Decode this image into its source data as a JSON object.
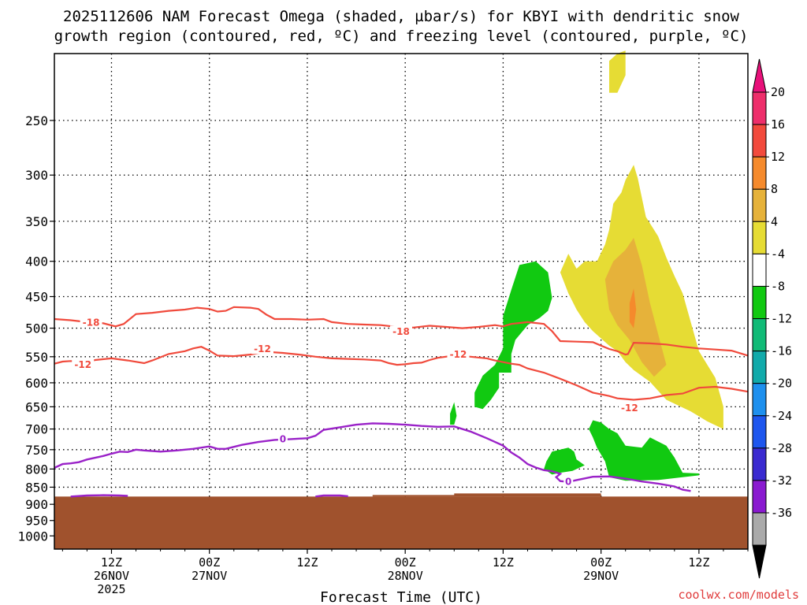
{
  "chart_data": {
    "type": "heatmap",
    "title_line1": "2025112606 NAM Forecast Omega (shaded, µbar/s) for KBYI with dendritic snow",
    "title_line2": "growth region (contoured, red, ºC) and freezing level (contoured, purple, ºC)",
    "xlabel": "Forecast Time (UTC)",
    "ylabel": "",
    "credit": "coolwx.com/models",
    "x_ticks": [
      {
        "line1": "12Z",
        "line2": "26NOV",
        "line3": "2025",
        "hour": 12
      },
      {
        "line1": "00Z",
        "line2": "27NOV",
        "line3": "",
        "hour": 24
      },
      {
        "line1": "12Z",
        "line2": "",
        "line3": "",
        "hour": 36
      },
      {
        "line1": "00Z",
        "line2": "28NOV",
        "line3": "",
        "hour": 48
      },
      {
        "line1": "12Z",
        "line2": "",
        "line3": "",
        "hour": 60
      },
      {
        "line1": "00Z",
        "line2": "29NOV",
        "line3": "",
        "hour": 72
      },
      {
        "line1": "12Z",
        "line2": "",
        "line3": "",
        "hour": 84
      }
    ],
    "xlim_hours": [
      5,
      90
    ],
    "y_scale": "log",
    "y_ticks": [
      "250",
      "300",
      "350",
      "400",
      "450",
      "500",
      "550",
      "600",
      "650",
      "700",
      "750",
      "800",
      "850",
      "900",
      "950",
      "1000"
    ],
    "ylim_mb": [
      1045,
      200
    ],
    "grid": true,
    "ground_level_mb": 877,
    "colorbar": {
      "labels": [
        "20",
        "16",
        "12",
        "8",
        "4",
        "-4",
        "-8",
        "-12",
        "-16",
        "-20",
        "-24",
        "-28",
        "-32",
        "-36"
      ],
      "colors": [
        "#ee2e6b",
        "#f24a3c",
        "#f58a2c",
        "#e6b23a",
        "#e6dc34",
        "#ffffff",
        "#11c911",
        "#11bb77",
        "#11aaaa",
        "#1e90ee",
        "#1e56ee",
        "#3a2ad0",
        "#8a1ad0",
        "#aaaaaa"
      ],
      "cap_top_color": "#e8117a",
      "cap_bottom_color": "#000000"
    },
    "contours": {
      "dgz_color": "#f04a3c",
      "freezing_color": "#9a22c8",
      "terrain_color": "#a0522d",
      "labels": [
        {
          "text": "-18",
          "hour": 9.5,
          "mb": 490
        },
        {
          "text": "-12",
          "hour": 8.5,
          "mb": 564
        },
        {
          "text": "-12",
          "hour": 30.5,
          "mb": 535
        },
        {
          "text": "-18",
          "hour": 47.5,
          "mb": 505
        },
        {
          "text": "-12",
          "hour": 54.5,
          "mb": 545
        },
        {
          "text": "-12",
          "hour": 75.5,
          "mb": 652
        },
        {
          "text": "0",
          "hour": 33,
          "mb": 723
        },
        {
          "text": "0",
          "hour": 68,
          "mb": 834
        }
      ],
      "dgz_minus18": [
        [
          5,
          485
        ],
        [
          7,
          487
        ],
        [
          9,
          490
        ],
        [
          11,
          492
        ],
        [
          12.5,
          497
        ],
        [
          13.5,
          493
        ],
        [
          15,
          477
        ],
        [
          17,
          475
        ],
        [
          19,
          472
        ],
        [
          21,
          470
        ],
        [
          22.5,
          467
        ],
        [
          24,
          469
        ],
        [
          25,
          473
        ],
        [
          26,
          472
        ],
        [
          27,
          466
        ],
        [
          29,
          467
        ],
        [
          30,
          469
        ],
        [
          31,
          478
        ],
        [
          32,
          485
        ],
        [
          34,
          485
        ],
        [
          36,
          486
        ],
        [
          38,
          485
        ],
        [
          39,
          490
        ],
        [
          41,
          493
        ],
        [
          43,
          494
        ],
        [
          45,
          495
        ],
        [
          47,
          498
        ],
        [
          49,
          499
        ],
        [
          51,
          496
        ],
        [
          53,
          498
        ],
        [
          55,
          500
        ],
        [
          57,
          498
        ],
        [
          59,
          495
        ],
        [
          60,
          497
        ],
        [
          61,
          493
        ],
        [
          63,
          490
        ],
        [
          65,
          493
        ],
        [
          66,
          505
        ],
        [
          67,
          522
        ],
        [
          69,
          523
        ],
        [
          71,
          524
        ],
        [
          72,
          530
        ],
        [
          73,
          536
        ],
        [
          74,
          540
        ],
        [
          75,
          546
        ],
        [
          75.3,
          545
        ],
        [
          76,
          525
        ],
        [
          78,
          526
        ],
        [
          80,
          528
        ],
        [
          82,
          532
        ],
        [
          84,
          535
        ],
        [
          86,
          537
        ],
        [
          88,
          539
        ],
        [
          90,
          548
        ]
      ],
      "dgz_minus12": [
        [
          5,
          563
        ],
        [
          6,
          559
        ],
        [
          7,
          558
        ],
        [
          9,
          559
        ],
        [
          10,
          556
        ],
        [
          12,
          553
        ],
        [
          14,
          557
        ],
        [
          16,
          562
        ],
        [
          17,
          557
        ],
        [
          19,
          545
        ],
        [
          21,
          540
        ],
        [
          22,
          535
        ],
        [
          23,
          532
        ],
        [
          24,
          539
        ],
        [
          25,
          548
        ],
        [
          27,
          549
        ],
        [
          29,
          546
        ],
        [
          31,
          541
        ],
        [
          33,
          543
        ],
        [
          35,
          546
        ],
        [
          37,
          550
        ],
        [
          39,
          553
        ],
        [
          41,
          554
        ],
        [
          43,
          555
        ],
        [
          45,
          557
        ],
        [
          46,
          562
        ],
        [
          47,
          565
        ],
        [
          48,
          564
        ],
        [
          49,
          562
        ],
        [
          50,
          561
        ],
        [
          51,
          556
        ],
        [
          52,
          552
        ],
        [
          54,
          548
        ],
        [
          56,
          550
        ],
        [
          58,
          553
        ],
        [
          59,
          557
        ],
        [
          61,
          563
        ],
        [
          62,
          565
        ],
        [
          63,
          572
        ],
        [
          65,
          580
        ],
        [
          67,
          592
        ],
        [
          69,
          605
        ],
        [
          71,
          620
        ],
        [
          73,
          627
        ],
        [
          74,
          632
        ],
        [
          76,
          635
        ],
        [
          78,
          632
        ],
        [
          80,
          625
        ],
        [
          82,
          622
        ],
        [
          84,
          610
        ],
        [
          86,
          608
        ],
        [
          88,
          612
        ],
        [
          90,
          618
        ]
      ],
      "freezing_0": [
        [
          5,
          797
        ],
        [
          6,
          787
        ],
        [
          7,
          785
        ],
        [
          8,
          782
        ],
        [
          9,
          775
        ],
        [
          11,
          766
        ],
        [
          12,
          760
        ],
        [
          13,
          755
        ],
        [
          14,
          756
        ],
        [
          15,
          750
        ],
        [
          16,
          752
        ],
        [
          18,
          755
        ],
        [
          20,
          752
        ],
        [
          22,
          748
        ],
        [
          24,
          742
        ],
        [
          25,
          748
        ],
        [
          26,
          748
        ],
        [
          28,
          738
        ],
        [
          30,
          731
        ],
        [
          32,
          726
        ],
        [
          34,
          724
        ],
        [
          36,
          722
        ],
        [
          37,
          716
        ],
        [
          38,
          702
        ],
        [
          40,
          696
        ],
        [
          42,
          690
        ],
        [
          44,
          687
        ],
        [
          46,
          688
        ],
        [
          48,
          690
        ],
        [
          50,
          693
        ],
        [
          52,
          695
        ],
        [
          54,
          694
        ],
        [
          56,
          706
        ],
        [
          58,
          722
        ],
        [
          60,
          740
        ],
        [
          61,
          757
        ],
        [
          62,
          770
        ],
        [
          63,
          787
        ],
        [
          64,
          796
        ],
        [
          65,
          803
        ],
        [
          66,
          806
        ],
        [
          67,
          813
        ],
        [
          66.5,
          822
        ],
        [
          67,
          833
        ],
        [
          68,
          835
        ],
        [
          69,
          830
        ],
        [
          71,
          821
        ],
        [
          73,
          820
        ],
        [
          75,
          826
        ],
        [
          77,
          834
        ],
        [
          79,
          840
        ],
        [
          81,
          848
        ],
        [
          82,
          857
        ],
        [
          83,
          861
        ]
      ],
      "freezing_small_1": [
        [
          7,
          877
        ],
        [
          9,
          874
        ],
        [
          11,
          873
        ],
        [
          13,
          874
        ],
        [
          14,
          875
        ]
      ],
      "freezing_small_2": [
        [
          37,
          877
        ],
        [
          38,
          874
        ],
        [
          40,
          874
        ],
        [
          41,
          876
        ]
      ]
    },
    "omega_regions": [
      {
        "color": "#11c911",
        "level": "-4 to -8",
        "points": [
          [
            57.5,
            586
          ],
          [
            59,
            565
          ],
          [
            60,
            535
          ],
          [
            60,
            480
          ],
          [
            61,
            440
          ],
          [
            62,
            405
          ],
          [
            64,
            400
          ],
          [
            65.5,
            415
          ],
          [
            66,
            452
          ],
          [
            65.5,
            472
          ],
          [
            64.5,
            483
          ],
          [
            63,
            495
          ],
          [
            61.5,
            520
          ],
          [
            61,
            545
          ],
          [
            61,
            580
          ],
          [
            59.5,
            580
          ],
          [
            59.5,
            610
          ],
          [
            58.5,
            635
          ],
          [
            57.5,
            655
          ],
          [
            56.5,
            650
          ],
          [
            56.5,
            620
          ]
        ]
      },
      {
        "color": "#11c911",
        "level": "-4 to -8",
        "points": [
          [
            53.5,
            665
          ],
          [
            54,
            640
          ],
          [
            54.3,
            670
          ],
          [
            54,
            690
          ],
          [
            53.5,
            690
          ]
        ]
      },
      {
        "color": "#11c911",
        "level": "-4 to -8",
        "points": [
          [
            65,
            800
          ],
          [
            65.3,
            780
          ],
          [
            66,
            755
          ],
          [
            67,
            750
          ],
          [
            68,
            745
          ],
          [
            68.7,
            755
          ],
          [
            69,
            775
          ],
          [
            70,
            790
          ],
          [
            68.5,
            805
          ],
          [
            67,
            810
          ],
          [
            66,
            815
          ]
        ]
      },
      {
        "color": "#11c911",
        "level": "-4 to -8",
        "points": [
          [
            70.5,
            700
          ],
          [
            71,
            680
          ],
          [
            72,
            685
          ],
          [
            73,
            700
          ],
          [
            74,
            710
          ],
          [
            75,
            740
          ],
          [
            77,
            745
          ],
          [
            78,
            720
          ],
          [
            79,
            730
          ],
          [
            80,
            740
          ],
          [
            81,
            770
          ],
          [
            82,
            810
          ],
          [
            84,
            812
          ],
          [
            84,
            817
          ],
          [
            82,
            822
          ],
          [
            79,
            830
          ],
          [
            75,
            832
          ],
          [
            73,
            822
          ],
          [
            72.5,
            780
          ],
          [
            71.5,
            745
          ],
          [
            71,
            720
          ]
        ]
      },
      {
        "color": "#e6dc34",
        "level": "4 to 8",
        "points": [
          [
            73,
            228
          ],
          [
            73,
            205
          ],
          [
            74,
            200
          ],
          [
            75,
            198
          ],
          [
            75,
            215
          ],
          [
            74,
            228
          ]
        ]
      },
      {
        "color": "#e6dc34",
        "level": "4 to 8",
        "points": [
          [
            67,
            415
          ],
          [
            68,
            390
          ],
          [
            69,
            410
          ],
          [
            70,
            400
          ],
          [
            71.5,
            400
          ],
          [
            72.5,
            378
          ],
          [
            73,
            360
          ],
          [
            73.5,
            330
          ],
          [
            74.5,
            318
          ],
          [
            75,
            305
          ],
          [
            76,
            290
          ],
          [
            76.5,
            303
          ],
          [
            77.5,
            345
          ],
          [
            79,
            368
          ],
          [
            80,
            395
          ],
          [
            81,
            420
          ],
          [
            82,
            445
          ],
          [
            83,
            490
          ],
          [
            84,
            540
          ],
          [
            86,
            590
          ],
          [
            87,
            650
          ],
          [
            87,
            700
          ],
          [
            85,
            682
          ],
          [
            83,
            660
          ],
          [
            80,
            635
          ],
          [
            78,
            598
          ],
          [
            76,
            575
          ],
          [
            75,
            560
          ],
          [
            74,
            540
          ],
          [
            73,
            530
          ],
          [
            71,
            505
          ],
          [
            70,
            490
          ],
          [
            69,
            470
          ],
          [
            68,
            445
          ]
        ]
      },
      {
        "color": "#e6b23a",
        "level": "8 to 12",
        "points": [
          [
            72.5,
            425
          ],
          [
            73.5,
            400
          ],
          [
            75,
            385
          ],
          [
            76,
            370
          ],
          [
            77,
            405
          ],
          [
            78,
            460
          ],
          [
            79,
            510
          ],
          [
            80,
            565
          ],
          [
            78.5,
            588
          ],
          [
            77,
            560
          ],
          [
            75.5,
            520
          ],
          [
            74,
            495
          ],
          [
            73,
            470
          ]
        ]
      },
      {
        "color": "#f58a2c",
        "level": "12 to 16",
        "points": [
          [
            75.5,
            460
          ],
          [
            76,
            438
          ],
          [
            76.3,
            470
          ],
          [
            76,
            500
          ],
          [
            75.5,
            490
          ]
        ]
      }
    ]
  }
}
